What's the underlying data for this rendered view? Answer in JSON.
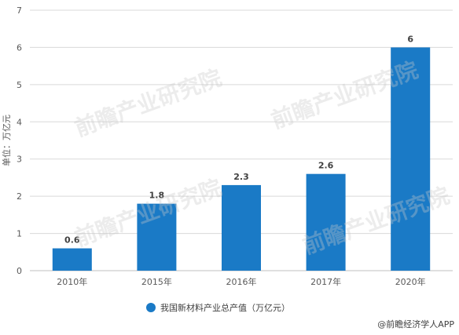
{
  "chart_data": {
    "type": "bar",
    "categories": [
      "2010年",
      "2015年",
      "2016年",
      "2017年",
      "2020年"
    ],
    "series": [
      {
        "name": "我国新材料产业总产值（万亿元）",
        "values": [
          0.6,
          1.8,
          2.3,
          2.6,
          6
        ]
      }
    ],
    "ylabel": "单位：万亿元",
    "ylim": [
      0,
      7
    ],
    "yticks": [
      0,
      1,
      2,
      3,
      4,
      5,
      6,
      7
    ],
    "grid": true,
    "legend": "bottom",
    "bar_color": "#1a7ac6"
  },
  "source": "@前瞻经济学人APP",
  "watermark": "前瞻产业研究院"
}
